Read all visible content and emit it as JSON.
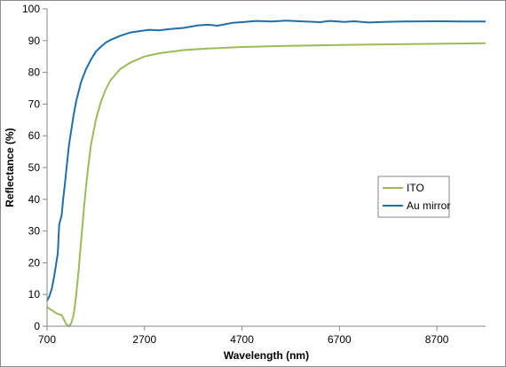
{
  "chart_data": {
    "type": "line",
    "title": "",
    "xlabel": "Wavelength (nm)",
    "ylabel": "Reflectance (%)",
    "xlim": [
      700,
      9700
    ],
    "ylim": [
      0,
      100
    ],
    "x_ticks": [
      700,
      2700,
      4700,
      6700,
      8700
    ],
    "y_ticks": [
      0,
      10,
      20,
      30,
      40,
      50,
      60,
      70,
      80,
      90,
      100
    ],
    "grid": false,
    "legend_position": "right",
    "series": [
      {
        "name": "ITO",
        "color": "#9bbb59",
        "points": [
          [
            700,
            6.0
          ],
          [
            800,
            5.0
          ],
          [
            900,
            4.0
          ],
          [
            1000,
            3.5
          ],
          [
            1050,
            2.0
          ],
          [
            1100,
            0.5
          ],
          [
            1150,
            0.0
          ],
          [
            1200,
            1.0
          ],
          [
            1250,
            4.0
          ],
          [
            1300,
            10.0
          ],
          [
            1350,
            18.0
          ],
          [
            1400,
            27.0
          ],
          [
            1450,
            36.0
          ],
          [
            1500,
            44.0
          ],
          [
            1550,
            51.0
          ],
          [
            1600,
            57.0
          ],
          [
            1700,
            65.0
          ],
          [
            1800,
            70.5
          ],
          [
            1900,
            74.5
          ],
          [
            2000,
            77.5
          ],
          [
            2200,
            81.0
          ],
          [
            2400,
            83.0
          ],
          [
            2700,
            85.0
          ],
          [
            3000,
            86.0
          ],
          [
            3500,
            87.0
          ],
          [
            4000,
            87.5
          ],
          [
            4700,
            88.0
          ],
          [
            5500,
            88.3
          ],
          [
            6700,
            88.6
          ],
          [
            7500,
            88.8
          ],
          [
            8700,
            89.0
          ],
          [
            9700,
            89.2
          ]
        ]
      },
      {
        "name": "Au mirror",
        "color": "#1f6fad",
        "points": [
          [
            700,
            8.0
          ],
          [
            750,
            9.5
          ],
          [
            800,
            12.0
          ],
          [
            850,
            16.0
          ],
          [
            900,
            21.0
          ],
          [
            920,
            23.0
          ],
          [
            950,
            32.0
          ],
          [
            1000,
            35.0
          ],
          [
            1030,
            40.0
          ],
          [
            1060,
            44.0
          ],
          [
            1100,
            50.0
          ],
          [
            1150,
            57.0
          ],
          [
            1200,
            62.0
          ],
          [
            1250,
            67.0
          ],
          [
            1300,
            71.0
          ],
          [
            1400,
            77.0
          ],
          [
            1500,
            81.0
          ],
          [
            1600,
            84.0
          ],
          [
            1700,
            86.5
          ],
          [
            1800,
            88.0
          ],
          [
            1900,
            89.3
          ],
          [
            2000,
            90.2
          ],
          [
            2200,
            91.5
          ],
          [
            2400,
            92.5
          ],
          [
            2600,
            93.0
          ],
          [
            2800,
            93.4
          ],
          [
            3000,
            93.2
          ],
          [
            3200,
            93.6
          ],
          [
            3500,
            94.0
          ],
          [
            3800,
            94.8
          ],
          [
            4000,
            95.0
          ],
          [
            4200,
            94.7
          ],
          [
            4500,
            95.6
          ],
          [
            4700,
            95.8
          ],
          [
            5000,
            96.2
          ],
          [
            5300,
            96.0
          ],
          [
            5600,
            96.3
          ],
          [
            6000,
            96.0
          ],
          [
            6300,
            95.8
          ],
          [
            6500,
            96.2
          ],
          [
            6800,
            95.9
          ],
          [
            7000,
            96.1
          ],
          [
            7300,
            95.7
          ],
          [
            7600,
            95.9
          ],
          [
            8000,
            96.0
          ],
          [
            8700,
            96.1
          ],
          [
            9200,
            96.0
          ],
          [
            9700,
            96.0
          ]
        ]
      }
    ]
  }
}
